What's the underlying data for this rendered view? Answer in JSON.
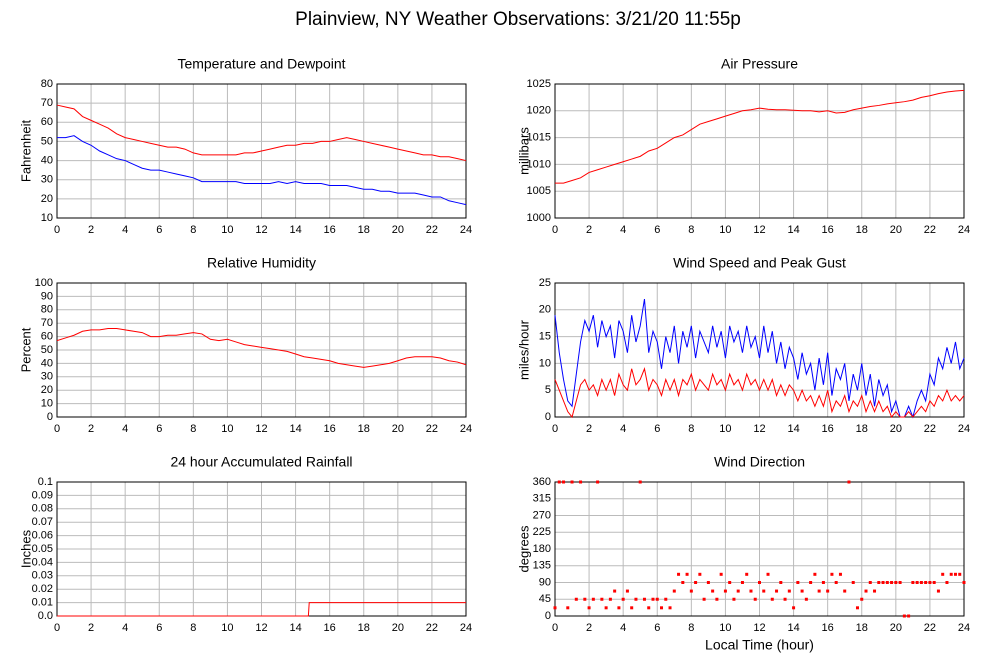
{
  "title": "Plainview, NY Weather Observations: 3/21/20 11:55p",
  "chart_data": [
    {
      "type": "line",
      "title": "Temperature and Dewpoint",
      "y_label": "Fahrenheit",
      "x": [
        0,
        0.5,
        1,
        1.5,
        2,
        2.5,
        3,
        3.5,
        4,
        4.5,
        5,
        5.5,
        6,
        6.5,
        7,
        7.5,
        8,
        8.5,
        9,
        9.5,
        10,
        10.5,
        11,
        11.5,
        12,
        12.5,
        13,
        13.5,
        14,
        14.5,
        15,
        15.5,
        16,
        16.5,
        17,
        17.5,
        18,
        18.5,
        19,
        19.5,
        20,
        20.5,
        21,
        21.5,
        22,
        22.5,
        23,
        23.5,
        24
      ],
      "series": [
        {
          "color": "#ff0000",
          "values": [
            69,
            68,
            67,
            63,
            61,
            59,
            57,
            54,
            52,
            51,
            50,
            49,
            48,
            47,
            47,
            46,
            44,
            43,
            43,
            43,
            43,
            43,
            44,
            44,
            45,
            46,
            47,
            48,
            48,
            49,
            49,
            50,
            50,
            51,
            52,
            51,
            50,
            49,
            48,
            47,
            46,
            45,
            44,
            43,
            43,
            42,
            42,
            41,
            40
          ]
        },
        {
          "color": "#0000ff",
          "values": [
            52,
            52,
            53,
            50,
            48,
            45,
            43,
            41,
            40,
            38,
            36,
            35,
            35,
            34,
            33,
            32,
            31,
            29,
            29,
            29,
            29,
            29,
            28,
            28,
            28,
            28,
            29,
            28,
            29,
            28,
            28,
            28,
            27,
            27,
            27,
            26,
            25,
            25,
            24,
            24,
            23,
            23,
            23,
            22,
            21,
            21,
            19,
            18,
            17
          ]
        }
      ],
      "xlim": [
        0,
        24
      ],
      "xticks": [
        0,
        2,
        4,
        6,
        8,
        10,
        12,
        14,
        16,
        18,
        20,
        22,
        24
      ],
      "ylim": [
        10,
        80
      ],
      "yticks": [
        10,
        20,
        30,
        40,
        50,
        60,
        70,
        80
      ],
      "grid": true
    },
    {
      "type": "line",
      "title": "Air Pressure",
      "y_label": "millibars",
      "x": [
        0,
        0.5,
        1,
        1.5,
        2,
        2.5,
        3,
        3.5,
        4,
        4.5,
        5,
        5.5,
        6,
        6.5,
        7,
        7.5,
        8,
        8.5,
        9,
        9.5,
        10,
        10.5,
        11,
        11.5,
        12,
        12.5,
        13,
        13.5,
        14,
        14.5,
        15,
        15.5,
        16,
        16.5,
        17,
        17.5,
        18,
        18.5,
        19,
        19.5,
        20,
        20.5,
        21,
        21.5,
        22,
        22.5,
        23,
        23.5,
        24
      ],
      "series": [
        {
          "color": "#ff0000",
          "values": [
            1006.5,
            1006.5,
            1007,
            1007.5,
            1008.5,
            1009,
            1009.5,
            1010,
            1010.5,
            1011,
            1011.5,
            1012.5,
            1013,
            1014,
            1015,
            1015.5,
            1016.5,
            1017.5,
            1018,
            1018.5,
            1019,
            1019.5,
            1020,
            1020.2,
            1020.5,
            1020.3,
            1020.2,
            1020.2,
            1020.1,
            1020,
            1020,
            1019.8,
            1020,
            1019.6,
            1019.7,
            1020.2,
            1020.5,
            1020.8,
            1021,
            1021.3,
            1021.5,
            1021.7,
            1022,
            1022.5,
            1022.8,
            1023.2,
            1023.5,
            1023.7,
            1023.8
          ]
        }
      ],
      "xlim": [
        0,
        24
      ],
      "xticks": [
        0,
        2,
        4,
        6,
        8,
        10,
        12,
        14,
        16,
        18,
        20,
        22,
        24
      ],
      "ylim": [
        1000,
        1025
      ],
      "yticks": [
        1000,
        1005,
        1010,
        1015,
        1020,
        1025
      ],
      "grid": true
    },
    {
      "type": "line",
      "title": "Relative Humidity",
      "y_label": "Percent",
      "x": [
        0,
        0.5,
        1,
        1.5,
        2,
        2.5,
        3,
        3.5,
        4,
        4.5,
        5,
        5.5,
        6,
        6.5,
        7,
        7.5,
        8,
        8.5,
        9,
        9.5,
        10,
        10.5,
        11,
        11.5,
        12,
        12.5,
        13,
        13.5,
        14,
        14.5,
        15,
        15.5,
        16,
        16.5,
        17,
        17.5,
        18,
        18.5,
        19,
        19.5,
        20,
        20.5,
        21,
        21.5,
        22,
        22.5,
        23,
        23.5,
        24
      ],
      "series": [
        {
          "color": "#ff0000",
          "values": [
            57,
            59,
            61,
            64,
            65,
            65,
            66,
            66,
            65,
            64,
            63,
            60,
            60,
            61,
            61,
            62,
            63,
            62,
            58,
            57,
            58,
            56,
            54,
            53,
            52,
            51,
            50,
            49,
            47,
            45,
            44,
            43,
            42,
            40,
            39,
            38,
            37,
            38,
            39,
            40,
            42,
            44,
            45,
            45,
            45,
            44,
            42,
            41,
            39
          ]
        }
      ],
      "xlim": [
        0,
        24
      ],
      "xticks": [
        0,
        2,
        4,
        6,
        8,
        10,
        12,
        14,
        16,
        18,
        20,
        22,
        24
      ],
      "ylim": [
        0,
        100
      ],
      "yticks": [
        0,
        10,
        20,
        30,
        40,
        50,
        60,
        70,
        80,
        90,
        100
      ],
      "grid": true
    },
    {
      "type": "line",
      "title": "Wind Speed and Peak Gust",
      "y_label": "miles/hour",
      "x": [
        0,
        0.25,
        0.5,
        0.75,
        1,
        1.25,
        1.5,
        1.75,
        2,
        2.25,
        2.5,
        2.75,
        3,
        3.25,
        3.5,
        3.75,
        4,
        4.25,
        4.5,
        4.75,
        5,
        5.25,
        5.5,
        5.75,
        6,
        6.25,
        6.5,
        6.75,
        7,
        7.25,
        7.5,
        7.75,
        8,
        8.25,
        8.5,
        8.75,
        9,
        9.25,
        9.5,
        9.75,
        10,
        10.25,
        10.5,
        10.75,
        11,
        11.25,
        11.5,
        11.75,
        12,
        12.25,
        12.5,
        12.75,
        13,
        13.25,
        13.5,
        13.75,
        14,
        14.25,
        14.5,
        14.75,
        15,
        15.25,
        15.5,
        15.75,
        16,
        16.25,
        16.5,
        16.75,
        17,
        17.25,
        17.5,
        17.75,
        18,
        18.25,
        18.5,
        18.75,
        19,
        19.25,
        19.5,
        19.75,
        20,
        20.25,
        20.5,
        20.75,
        21,
        21.25,
        21.5,
        21.75,
        22,
        22.25,
        22.5,
        22.75,
        23,
        23.25,
        23.5,
        23.75,
        24
      ],
      "series": [
        {
          "color": "#0000ff",
          "values": [
            19,
            12,
            7,
            3,
            2,
            8,
            14,
            18,
            16,
            19,
            13,
            18,
            15,
            17,
            11,
            18,
            16,
            12,
            19,
            14,
            17,
            22,
            12,
            16,
            14,
            9,
            15,
            12,
            17,
            10,
            16,
            13,
            17,
            11,
            16,
            14,
            12,
            17,
            13,
            16,
            11,
            17,
            14,
            16,
            12,
            17,
            13,
            15,
            11,
            17,
            12,
            16,
            10,
            14,
            9,
            13,
            11,
            7,
            12,
            8,
            10,
            5,
            11,
            6,
            12,
            4,
            9,
            7,
            10,
            3,
            8,
            5,
            10,
            4,
            8,
            2,
            7,
            4,
            6,
            1,
            3,
            0,
            0,
            2,
            0,
            3,
            5,
            3,
            8,
            6,
            11,
            9,
            13,
            10,
            14,
            9,
            11
          ]
        },
        {
          "color": "#ff0000",
          "values": [
            7,
            5,
            3,
            1,
            0,
            3,
            6,
            7,
            5,
            6,
            4,
            7,
            5,
            7,
            4,
            8,
            6,
            5,
            9,
            6,
            7,
            9,
            5,
            7,
            6,
            4,
            7,
            5,
            7,
            4,
            7,
            6,
            8,
            5,
            7,
            6,
            5,
            8,
            6,
            7,
            5,
            8,
            6,
            7,
            5,
            8,
            6,
            7,
            5,
            7,
            5,
            7,
            4,
            6,
            4,
            6,
            5,
            3,
            5,
            3,
            4,
            2,
            4,
            2,
            5,
            1,
            3,
            2,
            4,
            1,
            3,
            2,
            4,
            1,
            3,
            1,
            3,
            1,
            2,
            0,
            1,
            0,
            0,
            1,
            0,
            1,
            2,
            1,
            3,
            2,
            4,
            3,
            5,
            3,
            4,
            3,
            4
          ]
        }
      ],
      "xlim": [
        0,
        24
      ],
      "xticks": [
        0,
        2,
        4,
        6,
        8,
        10,
        12,
        14,
        16,
        18,
        20,
        22,
        24
      ],
      "ylim": [
        0,
        25
      ],
      "yticks": [
        0,
        5,
        10,
        15,
        20,
        25
      ],
      "grid": true
    },
    {
      "type": "line",
      "title": "24 hour Accumulated Rainfall",
      "y_label": "Inches",
      "x": [
        0,
        14.75,
        14.8,
        24
      ],
      "series": [
        {
          "color": "#ff0000",
          "values": [
            0,
            0,
            0.01,
            0.01
          ]
        }
      ],
      "xlim": [
        0,
        24
      ],
      "xticks": [
        0,
        2,
        4,
        6,
        8,
        10,
        12,
        14,
        16,
        18,
        20,
        22,
        24
      ],
      "ylim": [
        0,
        0.1
      ],
      "yticks": [
        {
          "value": 0,
          "label": "0.0"
        },
        0.01,
        0.02,
        0.03,
        0.04,
        0.05,
        0.06,
        0.07,
        0.08,
        0.09,
        {
          "value": 0.1,
          "label": "0.1"
        }
      ],
      "grid": true
    },
    {
      "type": "scatter",
      "title": "Wind Direction",
      "y_label": "degrees",
      "x_label": "Local Time (hour)",
      "x": [
        0,
        0.25,
        0.5,
        0.75,
        1,
        1.25,
        1.5,
        1.75,
        2,
        2.25,
        2.5,
        2.75,
        3,
        3.25,
        3.5,
        3.75,
        4,
        4.25,
        4.5,
        4.75,
        5,
        5.25,
        5.5,
        5.75,
        6,
        6.25,
        6.5,
        6.75,
        7,
        7.25,
        7.5,
        7.75,
        8,
        8.25,
        8.5,
        8.75,
        9,
        9.25,
        9.5,
        9.75,
        10,
        10.25,
        10.5,
        10.75,
        11,
        11.25,
        11.5,
        11.75,
        12,
        12.25,
        12.5,
        12.75,
        13,
        13.25,
        13.5,
        13.75,
        14,
        14.25,
        14.5,
        14.75,
        15,
        15.25,
        15.5,
        15.75,
        16,
        16.25,
        16.5,
        16.75,
        17,
        17.25,
        17.5,
        17.75,
        18,
        18.25,
        18.5,
        18.75,
        19,
        19.25,
        19.5,
        19.75,
        20,
        20.25,
        20.5,
        20.75,
        21,
        21.25,
        21.5,
        21.75,
        22,
        22.25,
        22.5,
        22.75,
        23,
        23.25,
        23.5,
        23.75,
        24
      ],
      "series": [
        {
          "color": "#ff0000",
          "values": [
            22,
            360,
            360,
            22,
            360,
            45,
            360,
            45,
            22,
            45,
            360,
            45,
            22,
            45,
            67,
            22,
            45,
            67,
            22,
            45,
            360,
            45,
            22,
            45,
            45,
            22,
            45,
            22,
            67,
            112,
            90,
            112,
            67,
            90,
            112,
            45,
            90,
            67,
            45,
            112,
            67,
            90,
            45,
            67,
            90,
            112,
            67,
            45,
            90,
            67,
            112,
            45,
            67,
            90,
            45,
            67,
            22,
            90,
            67,
            45,
            90,
            112,
            67,
            90,
            67,
            112,
            90,
            112,
            67,
            360,
            90,
            22,
            45,
            67,
            90,
            67,
            90,
            90,
            90,
            90,
            90,
            90,
            0,
            0,
            90,
            90,
            90,
            90,
            90,
            90,
            67,
            112,
            90,
            112,
            112,
            112,
            90
          ]
        }
      ],
      "xlim": [
        0,
        24
      ],
      "xticks": [
        0,
        2,
        4,
        6,
        8,
        10,
        12,
        14,
        16,
        18,
        20,
        22,
        24
      ],
      "ylim": [
        0,
        360
      ],
      "yticks": [
        0,
        45,
        90,
        135,
        180,
        225,
        270,
        315,
        360
      ],
      "grid": true
    }
  ]
}
